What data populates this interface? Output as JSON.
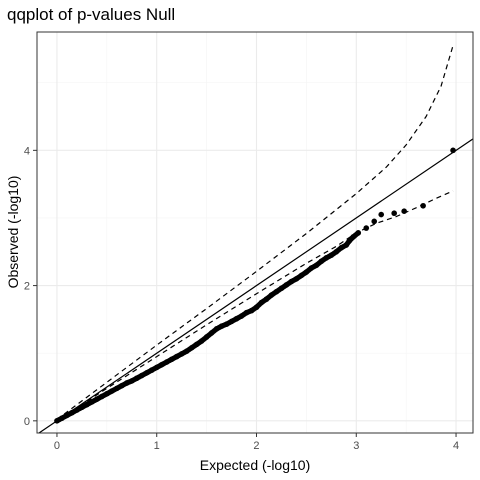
{
  "chart_data": {
    "type": "scatter",
    "title": "qqplot of p-values Null",
    "xlabel": "Expected (-log10)",
    "ylabel": "Observed (-log10)",
    "xlim": [
      -0.2,
      4.17
    ],
    "ylim": [
      -0.18,
      5.75
    ],
    "x_ticks": [
      0,
      1,
      2,
      3,
      4
    ],
    "y_ticks": [
      0,
      2,
      4
    ],
    "x_tick_labels": [
      "0",
      "1",
      "2",
      "3",
      "4"
    ],
    "y_tick_labels": [
      "0",
      "2",
      "4"
    ],
    "grid": true,
    "legend": "none",
    "colors": {
      "points": "#000000",
      "panel_border": "#333333",
      "grid_major": "#ebebeb",
      "grid_minor": "#f5f5f5"
    },
    "reference_line": {
      "slope": 1,
      "intercept": 0,
      "style": "solid"
    },
    "ci_upper": {
      "style": "dashed",
      "x": [
        0,
        0.5,
        1,
        1.5,
        2,
        2.5,
        3,
        3.3,
        3.5,
        3.7,
        3.85,
        3.97
      ],
      "y": [
        0.02,
        0.57,
        1.12,
        1.66,
        2.21,
        2.77,
        3.36,
        3.75,
        4.08,
        4.5,
        4.95,
        5.55
      ]
    },
    "ci_lower": {
      "style": "dashed",
      "x": [
        0,
        0.5,
        1,
        1.5,
        2,
        2.5,
        2.8,
        3.0,
        3.2,
        3.4,
        3.6,
        3.8,
        3.97
      ],
      "y": [
        0,
        0.48,
        0.95,
        1.42,
        1.88,
        2.33,
        2.58,
        2.78,
        2.92,
        3.02,
        3.15,
        3.29,
        3.4
      ]
    },
    "points": {
      "x": [
        0,
        0.05,
        0.1,
        0.15,
        0.2,
        0.25,
        0.3,
        0.35,
        0.4,
        0.45,
        0.5,
        0.55,
        0.6,
        0.65,
        0.7,
        0.75,
        0.8,
        0.85,
        0.9,
        0.95,
        1.0,
        1.05,
        1.1,
        1.15,
        1.2,
        1.25,
        1.3,
        1.35,
        1.4,
        1.45,
        1.5,
        1.55,
        1.6,
        1.65,
        1.7,
        1.75,
        1.8,
        1.85,
        1.9,
        1.95,
        2.0,
        2.05,
        2.1,
        2.15,
        2.2,
        2.25,
        2.3,
        2.35,
        2.4,
        2.45,
        2.5,
        2.55,
        2.6,
        2.65,
        2.7,
        2.75,
        2.8,
        2.85,
        2.9,
        2.93,
        2.97,
        3.02,
        3.1,
        3.18,
        3.25,
        3.38,
        3.48,
        3.67,
        3.97
      ],
      "y": [
        0.0,
        0.04,
        0.08,
        0.12,
        0.16,
        0.2,
        0.24,
        0.28,
        0.32,
        0.36,
        0.4,
        0.44,
        0.48,
        0.52,
        0.56,
        0.59,
        0.63,
        0.67,
        0.71,
        0.75,
        0.79,
        0.83,
        0.87,
        0.91,
        0.95,
        0.99,
        1.03,
        1.08,
        1.13,
        1.18,
        1.24,
        1.3,
        1.36,
        1.4,
        1.43,
        1.47,
        1.51,
        1.55,
        1.6,
        1.63,
        1.68,
        1.75,
        1.8,
        1.86,
        1.91,
        1.96,
        2.01,
        2.06,
        2.1,
        2.15,
        2.2,
        2.26,
        2.3,
        2.36,
        2.41,
        2.45,
        2.5,
        2.56,
        2.6,
        2.66,
        2.72,
        2.78,
        2.85,
        2.95,
        3.05,
        3.07,
        3.1,
        3.18,
        4.0
      ]
    }
  }
}
